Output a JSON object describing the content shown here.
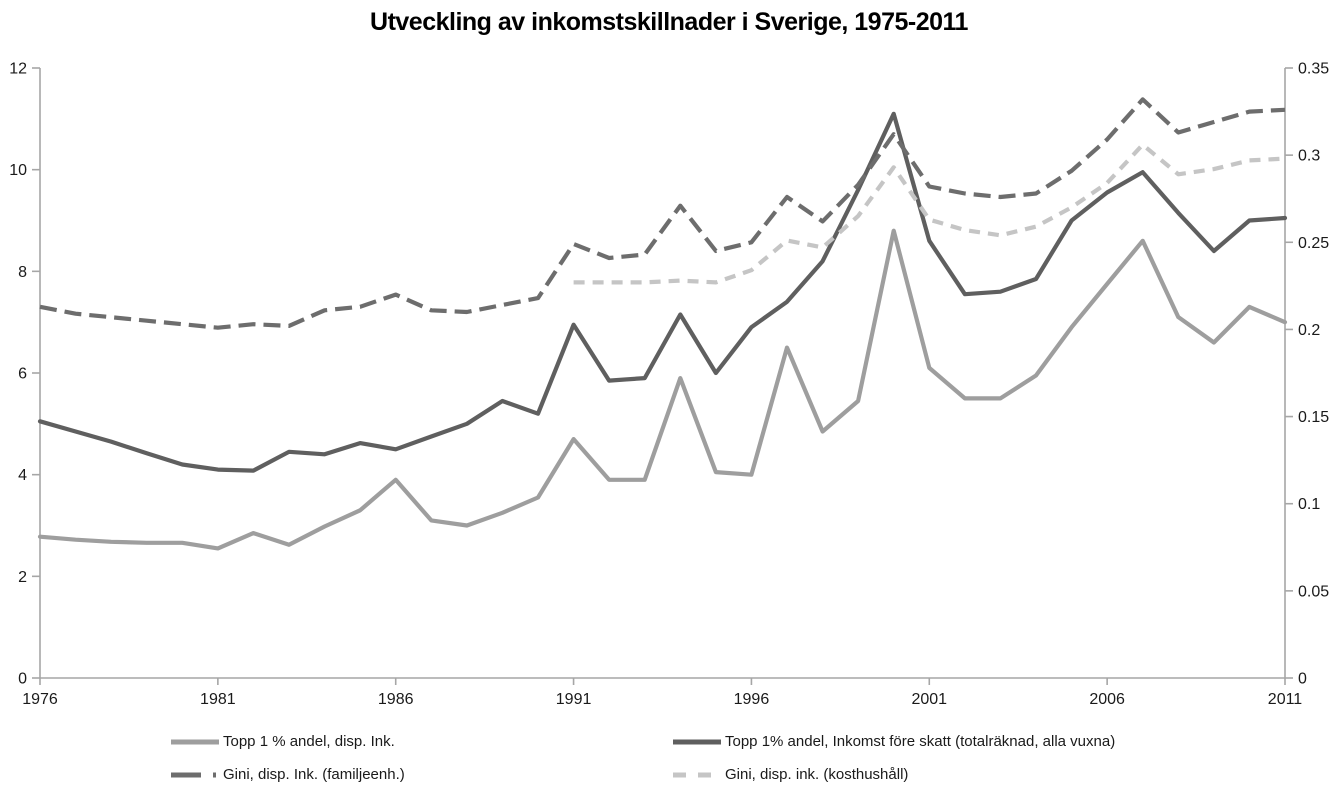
{
  "page_title": "Utveckling av inkomstskillnader i Sverige, 1975-2011",
  "colors": {
    "background": "#ffffff",
    "axis_line": "#a6a6a6",
    "tick_text": "#1a1a1a",
    "title_text": "#000000"
  },
  "chart_data": {
    "type": "line",
    "title": "Utveckling av inkomstskillnader i Sverige, 1975-2011",
    "xlabel": "",
    "ylabel_left": "",
    "ylabel_right": "",
    "x_start_year": 1976,
    "x_end_year": 2011,
    "x": [
      1976,
      1977,
      1978,
      1979,
      1980,
      1981,
      1982,
      1983,
      1984,
      1985,
      1986,
      1987,
      1988,
      1989,
      1990,
      1991,
      1992,
      1993,
      1994,
      1995,
      1996,
      1997,
      1998,
      1999,
      2000,
      2001,
      2002,
      2003,
      2004,
      2005,
      2006,
      2007,
      2008,
      2009,
      2010,
      2011
    ],
    "x_tick_labels": [
      "1976",
      "1981",
      "1986",
      "1991",
      "1996",
      "2001",
      "2006",
      "2011"
    ],
    "left_axis": {
      "min": 0,
      "max": 12,
      "tick_labels": [
        "0",
        "2",
        "4",
        "6",
        "8",
        "10",
        "12"
      ]
    },
    "right_axis": {
      "min": 0,
      "max": 0.35,
      "tick_labels": [
        "0",
        "0.05",
        "0.1",
        "0.15",
        "0.2",
        "0.25",
        "0.3",
        "0.35"
      ]
    },
    "grid": "off",
    "legend_position": "bottom",
    "series": [
      {
        "name": "Topp 1 % andel, disp. Ink.",
        "axis": "left",
        "style": "solid",
        "color": "#9e9e9e",
        "values": [
          2.78,
          2.72,
          2.68,
          2.66,
          2.66,
          2.55,
          2.85,
          2.62,
          2.98,
          3.3,
          3.9,
          3.1,
          3.0,
          3.25,
          3.55,
          4.7,
          3.9,
          3.9,
          5.9,
          4.05,
          4.0,
          6.5,
          4.85,
          5.45,
          8.8,
          6.1,
          5.5,
          5.5,
          5.95,
          6.9,
          7.75,
          8.6,
          7.1,
          6.6,
          7.3,
          7.0
        ]
      },
      {
        "name": "Topp 1% andel, Inkomst före skatt (totalräknad, alla vuxna)",
        "axis": "left",
        "style": "solid",
        "color": "#5f5f5f",
        "values": [
          5.05,
          4.85,
          4.65,
          4.42,
          4.2,
          4.1,
          4.08,
          4.45,
          4.4,
          4.62,
          4.5,
          4.75,
          5.0,
          5.45,
          5.2,
          6.95,
          5.85,
          5.9,
          7.15,
          6.0,
          6.9,
          7.4,
          8.2,
          9.6,
          11.1,
          8.6,
          7.55,
          7.6,
          7.85,
          9.0,
          9.55,
          9.95,
          9.15,
          8.4,
          9.0,
          9.05
        ]
      },
      {
        "name": "Gini, disp. Ink. (familjeenh.)",
        "axis": "right",
        "style": "long-dash",
        "color": "#6d6d6d",
        "values": [
          0.213,
          0.209,
          0.207,
          0.205,
          0.203,
          0.201,
          0.203,
          0.202,
          0.211,
          0.213,
          0.22,
          0.211,
          0.21,
          0.214,
          0.218,
          0.249,
          0.241,
          0.243,
          0.271,
          0.245,
          0.25,
          0.276,
          0.262,
          0.283,
          0.312,
          0.282,
          0.278,
          0.276,
          0.278,
          0.291,
          0.309,
          0.332,
          0.313,
          0.319,
          0.325,
          0.326
        ]
      },
      {
        "name": "Gini, disp. ink. (kosthushåll)",
        "axis": "right",
        "style": "short-dash",
        "color": "#c5c5c5",
        "values": [
          null,
          null,
          null,
          null,
          null,
          null,
          null,
          null,
          null,
          null,
          null,
          null,
          null,
          null,
          null,
          0.227,
          0.227,
          0.227,
          0.228,
          0.227,
          0.234,
          0.251,
          0.247,
          0.265,
          0.293,
          0.263,
          0.257,
          0.254,
          0.259,
          0.27,
          0.284,
          0.306,
          0.289,
          0.292,
          0.297,
          0.298
        ]
      }
    ]
  }
}
